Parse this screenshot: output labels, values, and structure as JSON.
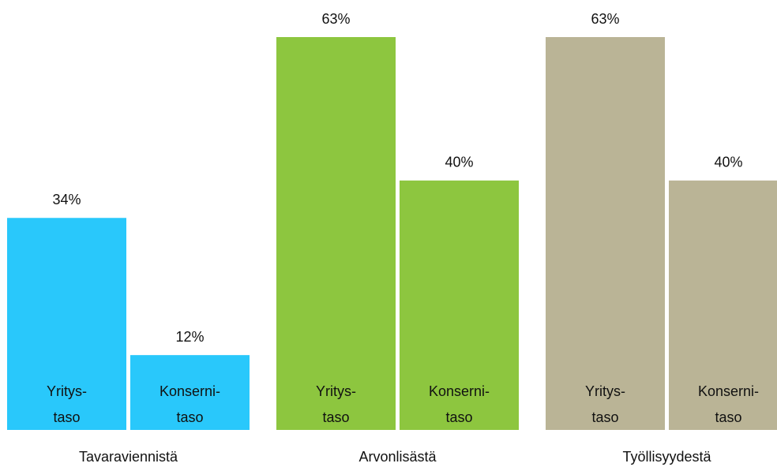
{
  "chart_data": {
    "type": "bar",
    "categories": [
      "Tavaraviennistä",
      "Arvonlisästä",
      "Työllisyydestä"
    ],
    "colors": [
      "#29c8fb",
      "#8dc63f",
      "#bab496"
    ],
    "series": [
      {
        "name": [
          "Yritys-",
          "taso"
        ],
        "values": [
          34,
          63,
          63
        ],
        "value_labels": [
          "34%",
          "63%",
          "63%"
        ]
      },
      {
        "name": [
          "Konserni-",
          "taso"
        ],
        "values": [
          12,
          40,
          40
        ],
        "value_labels": [
          "12%",
          "40%",
          "40%"
        ]
      }
    ]
  }
}
